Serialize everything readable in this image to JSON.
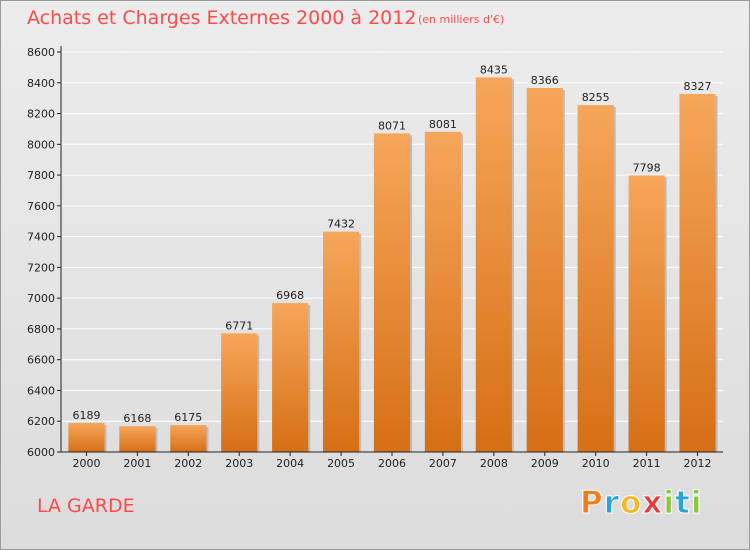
{
  "header": {
    "title": "Achats et Charges Externes 2000 à 2012",
    "subtitle": "(en milliers d'€)"
  },
  "footer": {
    "place": "LA GARDE"
  },
  "logo": {
    "letters": [
      {
        "ch": "P",
        "color": "#f07d1a"
      },
      {
        "ch": "r",
        "color": "#2aa3d8"
      },
      {
        "ch": "o",
        "color": "#f2b92a"
      },
      {
        "ch": "x",
        "color": "#e43c3c"
      },
      {
        "ch": "i",
        "color": "#8cc63f"
      },
      {
        "ch": "t",
        "color": "#2aa3d8"
      },
      {
        "ch": "i",
        "color": "#8cc63f"
      }
    ]
  },
  "colors": {
    "bar_top": "#f6a65a",
    "bar_bottom": "#d66f16",
    "text": "#ff4a4a",
    "axis": "#222222"
  },
  "chart_data": {
    "type": "bar",
    "title": "Achats et Charges Externes 2000 à 2012",
    "subtitle": "(en milliers d'€)",
    "categories": [
      "2000",
      "2001",
      "2002",
      "2003",
      "2004",
      "2005",
      "2006",
      "2007",
      "2008",
      "2009",
      "2010",
      "2011",
      "2012"
    ],
    "values": [
      6189,
      6168,
      6175,
      6771,
      6968,
      7432,
      8071,
      8081,
      8435,
      8366,
      8255,
      7798,
      8327
    ],
    "data_labels": [
      "6189",
      "6168",
      "6175",
      "6771",
      "6968",
      "7432",
      "8071",
      "8081",
      "8435",
      "8366",
      "8255",
      "7798",
      "8327"
    ],
    "y_ticks": [
      "6000",
      "6200",
      "6400",
      "6600",
      "6800",
      "7000",
      "7200",
      "7400",
      "7600",
      "7800",
      "8000",
      "8200",
      "8400",
      "8600"
    ],
    "ylim": [
      6000,
      8600
    ],
    "grid": true,
    "xlabel": "",
    "ylabel": ""
  }
}
